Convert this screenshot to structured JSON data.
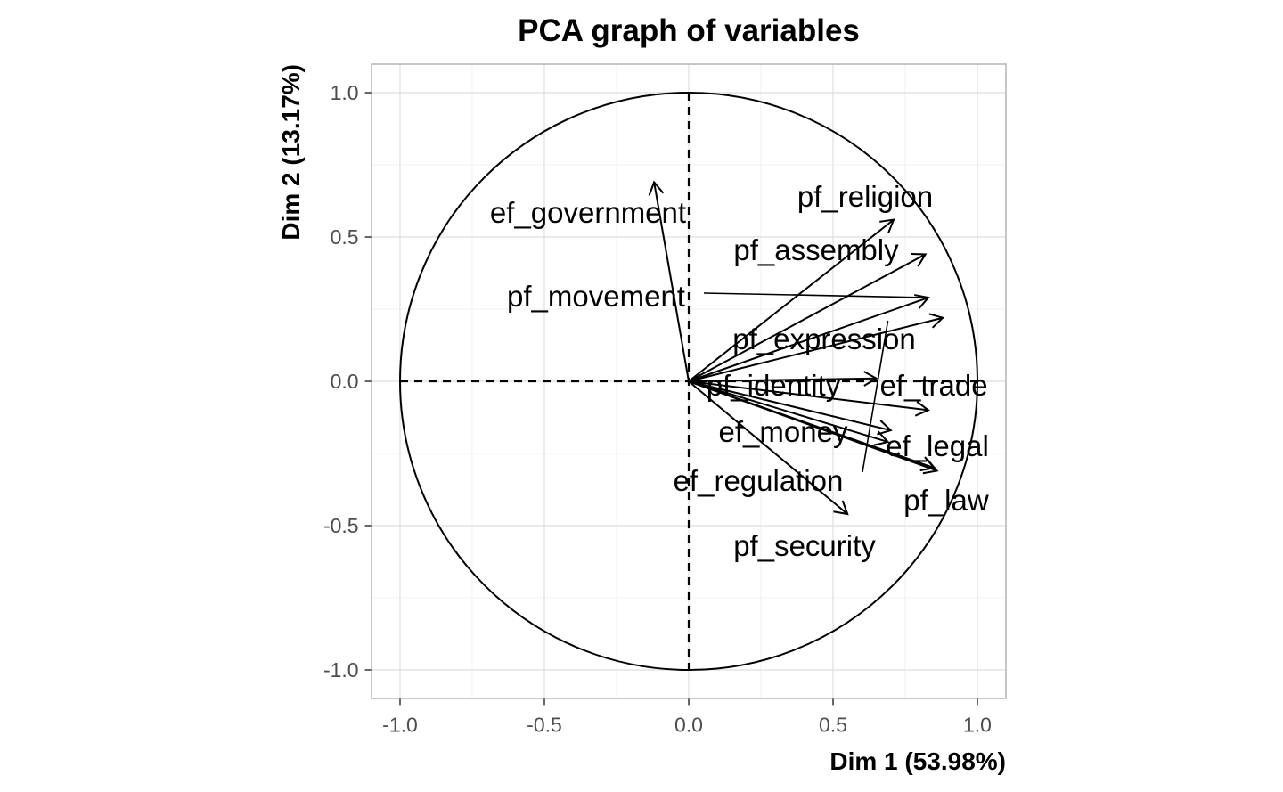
{
  "chart_data": {
    "type": "scatter",
    "title": "PCA graph of variables",
    "xlabel": "Dim 1 (53.98%)",
    "ylabel": "Dim 2 (13.17%)",
    "xlim": [
      -1.1,
      1.1
    ],
    "ylim": [
      -1.1,
      1.1
    ],
    "xticks": [
      -1.0,
      -0.5,
      0.0,
      0.5,
      1.0
    ],
    "yticks": [
      -1.0,
      -0.5,
      0.0,
      0.5,
      1.0
    ],
    "xtick_labels": [
      "-1.0",
      "-0.5",
      "0.0",
      "0.5",
      "1.0"
    ],
    "ytick_labels": [
      "-1.0",
      "-0.5",
      "0.0",
      "0.5",
      "1.0"
    ],
    "grid": true,
    "unit_circle": true,
    "zero_lines": "dashed",
    "variables": [
      {
        "name": "ef_government",
        "x": -0.12,
        "y": 0.69
      },
      {
        "name": "pf_religion",
        "x": 0.71,
        "y": 0.56
      },
      {
        "name": "pf_assembly",
        "x": 0.82,
        "y": 0.44
      },
      {
        "name": "pf_movement",
        "x": 0.83,
        "y": 0.29
      },
      {
        "name": "pf_expression",
        "x": 0.88,
        "y": 0.22
      },
      {
        "name": "pf_identity",
        "x": 0.65,
        "y": 0.01
      },
      {
        "name": "ef_trade",
        "x": 0.83,
        "y": -0.1
      },
      {
        "name": "ef_money",
        "x": 0.7,
        "y": -0.17
      },
      {
        "name": "ef_regulation",
        "x": 0.69,
        "y": -0.21
      },
      {
        "name": "ef_legal",
        "x": 0.85,
        "y": -0.3
      },
      {
        "name": "pf_law",
        "x": 0.86,
        "y": -0.31
      },
      {
        "name": "pf_security",
        "x": 0.55,
        "y": -0.46
      }
    ]
  }
}
